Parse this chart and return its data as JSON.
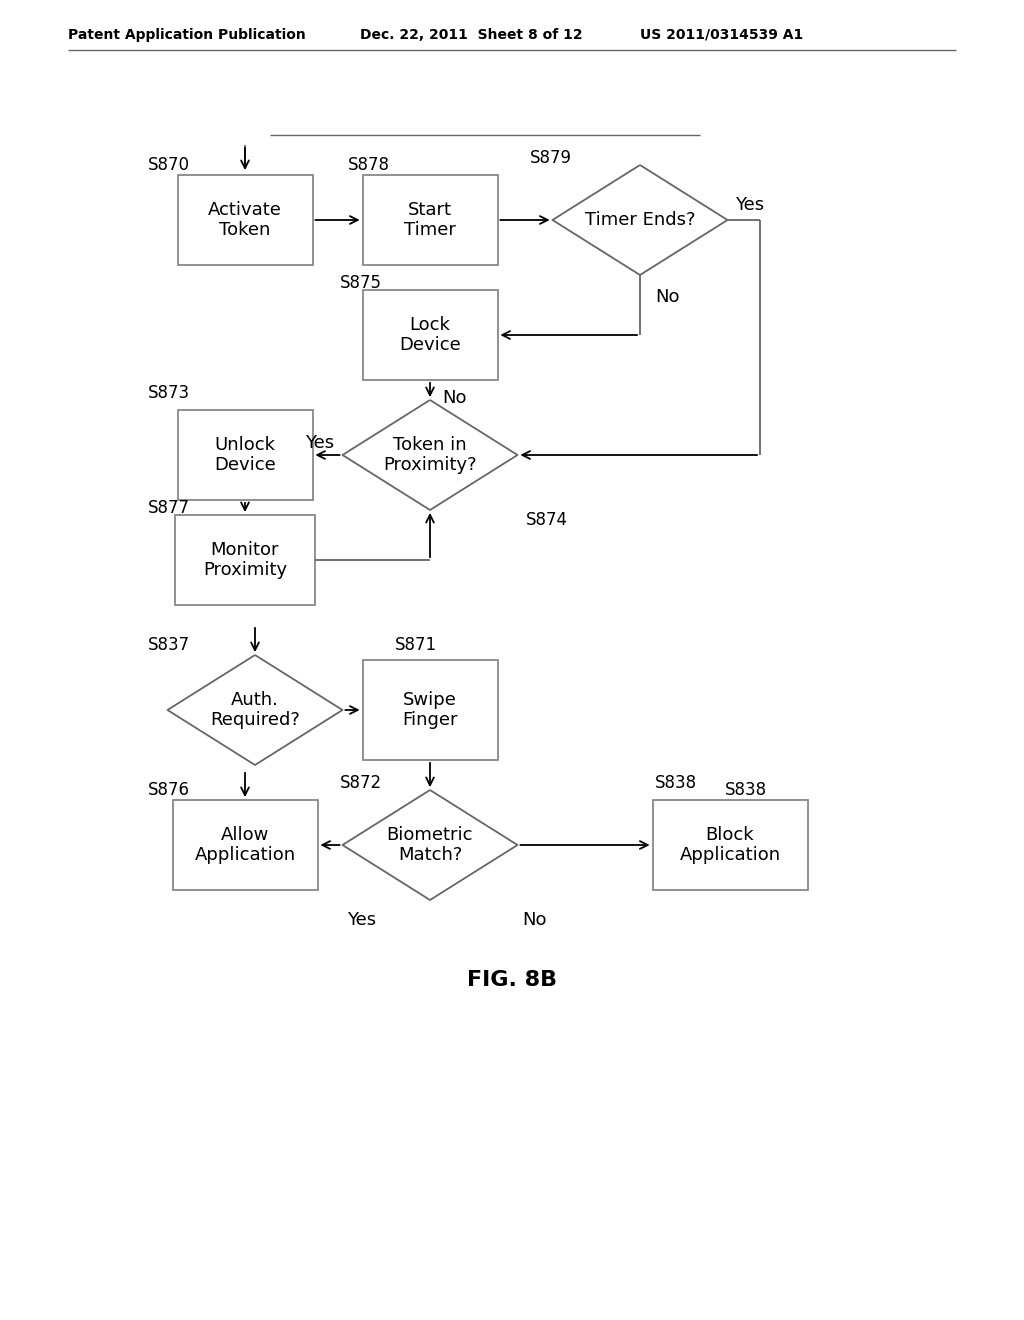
{
  "bg_color": "#ffffff",
  "header_left": "Patent Application Publication",
  "header_mid": "Dec. 22, 2011  Sheet 8 of 12",
  "header_right": "US 2011/0314539 A1",
  "fig_label": "FIG. 8B",
  "line_color": "#666666",
  "text_color": "#000000",
  "box_edge_color": "#888888"
}
